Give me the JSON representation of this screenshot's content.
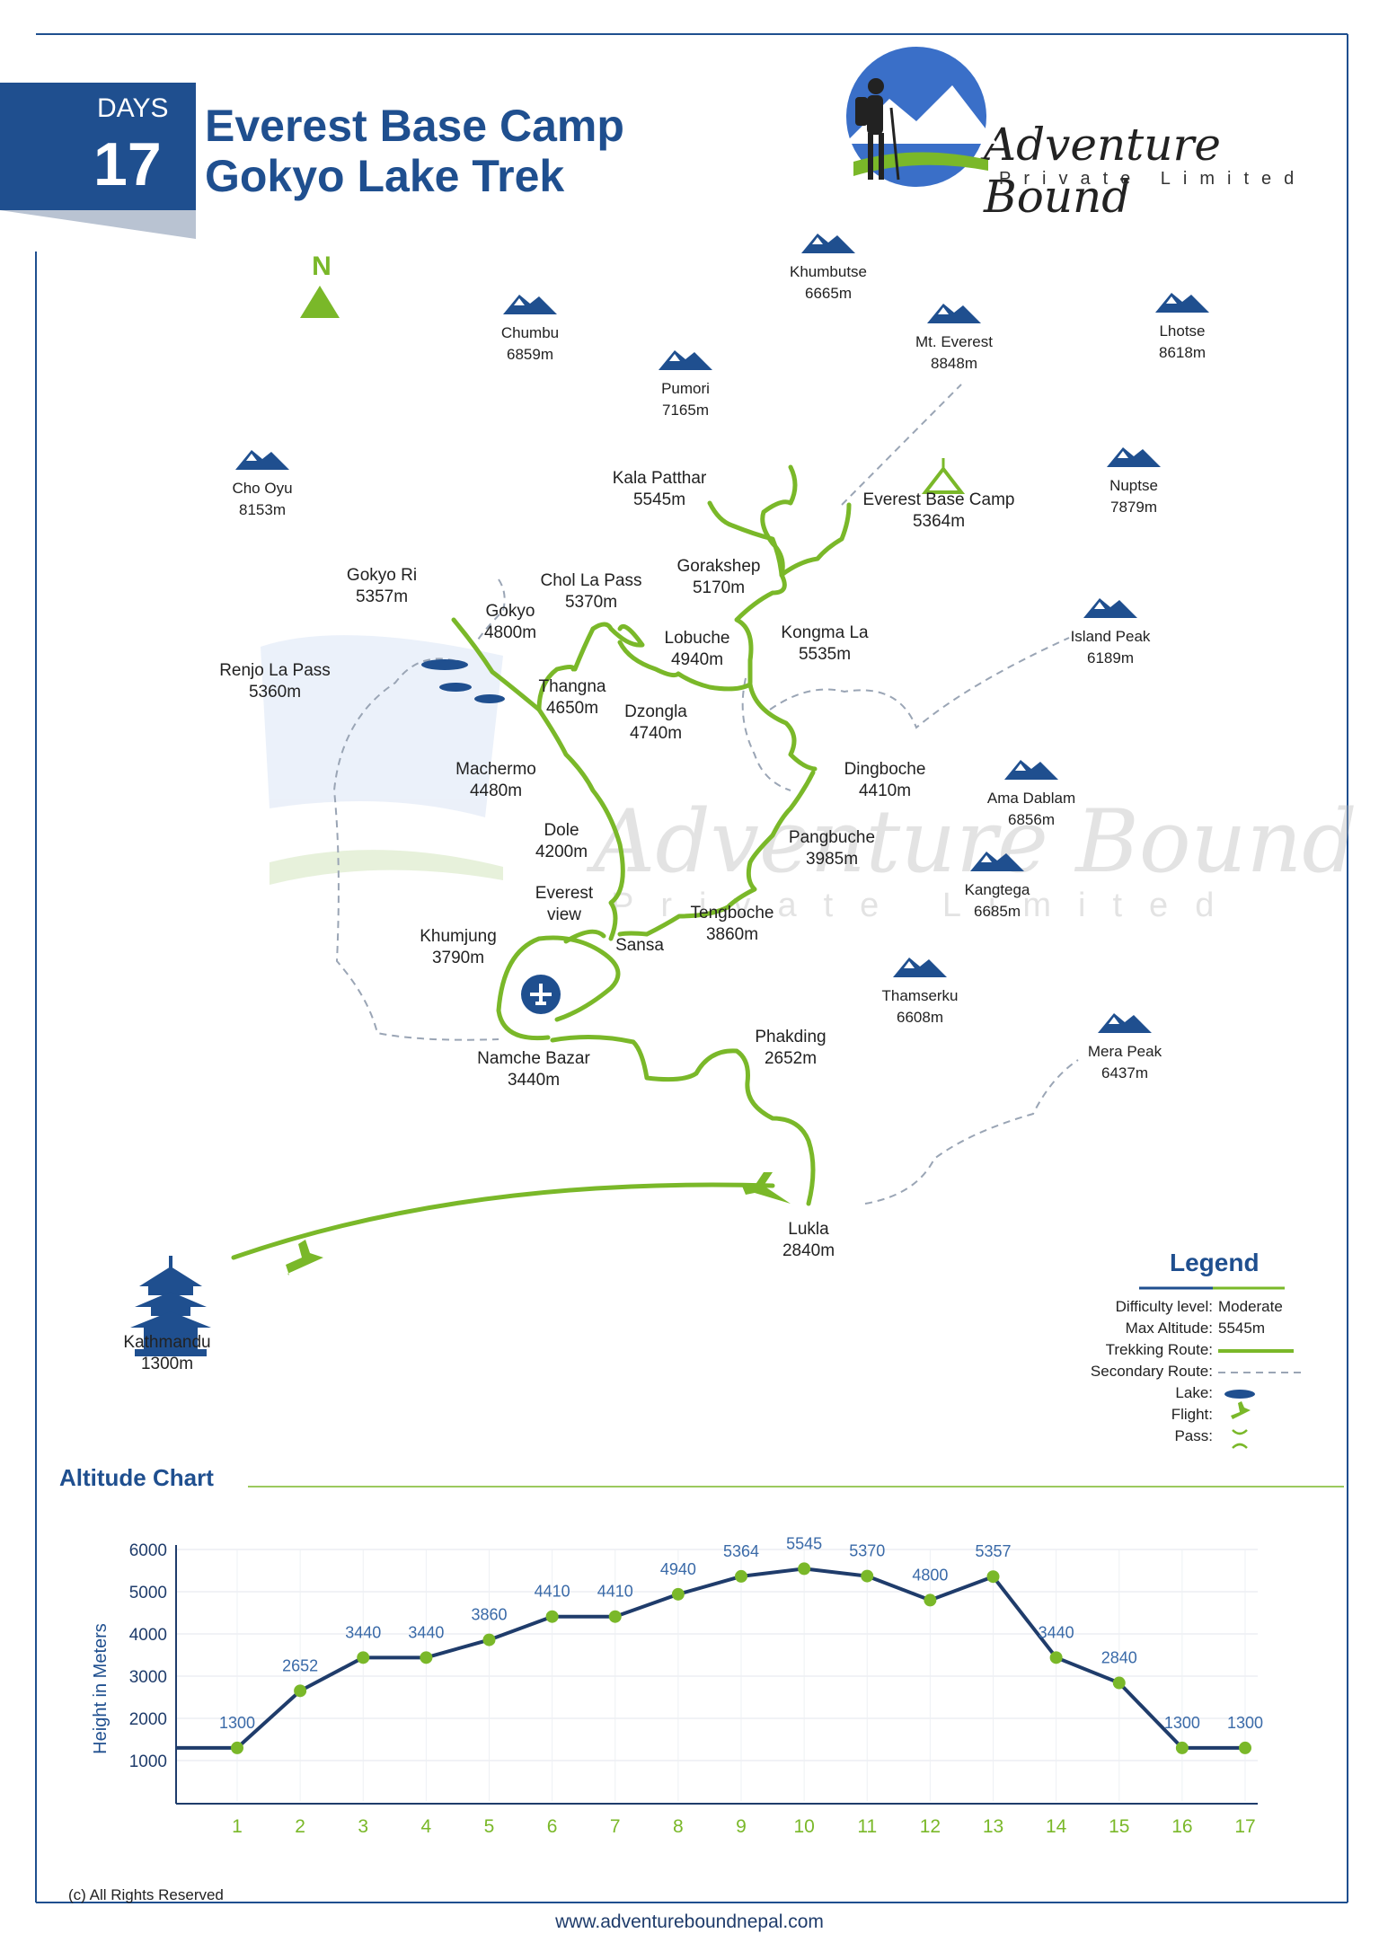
{
  "header": {
    "days_label": "DAYS",
    "days_number": "17",
    "title_line1": "Everest Base Camp",
    "title_line2": "Gokyo Lake Trek"
  },
  "brand": {
    "name": "Adventure Bound",
    "subtitle": "Private Limited",
    "watermark_name": "Adventure Bound",
    "watermark_sub": "Private Limited"
  },
  "north_label": "N",
  "colors": {
    "navy": "#1f4f8f",
    "green": "#7ab829",
    "dashed": "#9aa5b5",
    "text": "#222222"
  },
  "peaks": [
    {
      "name": "Khumbutse",
      "alt": "6665m"
    },
    {
      "name": "Chumbu",
      "alt": "6859m"
    },
    {
      "name": "Mt. Everest",
      "alt": "8848m"
    },
    {
      "name": "Lhotse",
      "alt": "8618m"
    },
    {
      "name": "Pumori",
      "alt": "7165m"
    },
    {
      "name": "Cho Oyu",
      "alt": "8153m"
    },
    {
      "name": "Nuptse",
      "alt": "7879m"
    },
    {
      "name": "Island Peak",
      "alt": "6189m"
    },
    {
      "name": "Ama Dablam",
      "alt": "6856m"
    },
    {
      "name": "Kangtega",
      "alt": "6685m"
    },
    {
      "name": "Thamserku",
      "alt": "6608m"
    },
    {
      "name": "Mera Peak",
      "alt": "6437m"
    }
  ],
  "places": [
    {
      "name": "Kala Patthar",
      "alt": "5545m"
    },
    {
      "name": "Everest Base Camp",
      "alt": "5364m"
    },
    {
      "name": "Gorakshep",
      "alt": "5170m"
    },
    {
      "name": "Gokyo Ri",
      "alt": "5357m"
    },
    {
      "name": "Chol La Pass",
      "alt": "5370m"
    },
    {
      "name": "Gokyo",
      "alt": "4800m"
    },
    {
      "name": "Lobuche",
      "alt": "4940m"
    },
    {
      "name": "Kongma La",
      "alt": "5535m"
    },
    {
      "name": "Renjo La Pass",
      "alt": "5360m"
    },
    {
      "name": "Thangna",
      "alt": "4650m"
    },
    {
      "name": "Dzongla",
      "alt": "4740m"
    },
    {
      "name": "Dingboche",
      "alt": "4410m"
    },
    {
      "name": "Machermo",
      "alt": "4480m"
    },
    {
      "name": "Dole",
      "alt": "4200m"
    },
    {
      "name": "Pangbuche",
      "alt": "3985m"
    },
    {
      "name": "Everest",
      "alt": "view"
    },
    {
      "name": "Tengboche",
      "alt": "3860m"
    },
    {
      "name": "Khumjung",
      "alt": "3790m"
    },
    {
      "name": "Sansa",
      "alt": ""
    },
    {
      "name": "Namche Bazar",
      "alt": "3440m"
    },
    {
      "name": "Phakding",
      "alt": "2652m"
    },
    {
      "name": "Lukla",
      "alt": "2840m"
    },
    {
      "name": "Kathmandu",
      "alt": "1300m"
    }
  ],
  "legend": {
    "title": "Legend",
    "difficulty_label": "Difficulty level:",
    "difficulty_value": "Moderate",
    "max_alt_label": "Max Altitude:",
    "max_alt_value": "5545m",
    "trekking_label": "Trekking Route:",
    "secondary_label": "Secondary Route:",
    "lake_label": "Lake:",
    "flight_label": "Flight:",
    "pass_label": "Pass:"
  },
  "chart_data": {
    "type": "line",
    "title": "Altitude Chart",
    "xlabel": "",
    "ylabel": "Height in Meters",
    "x": [
      1,
      2,
      3,
      4,
      5,
      6,
      7,
      8,
      9,
      10,
      11,
      12,
      13,
      14,
      15,
      16,
      17
    ],
    "series": [
      {
        "values": [
          1300,
          2652,
          3440,
          3440,
          3860,
          4410,
          4410,
          4940,
          5364,
          5545,
          5370,
          4800,
          5357,
          3440,
          2840,
          1300,
          1300
        ]
      }
    ],
    "yticks": [
      1000,
      2000,
      3000,
      4000,
      5000,
      6000
    ],
    "ylim": [
      0,
      6000
    ],
    "grid": true
  },
  "footer": {
    "copyright": "(c) All Rights Reserved",
    "url": "www.adventureboundnepal.com"
  }
}
